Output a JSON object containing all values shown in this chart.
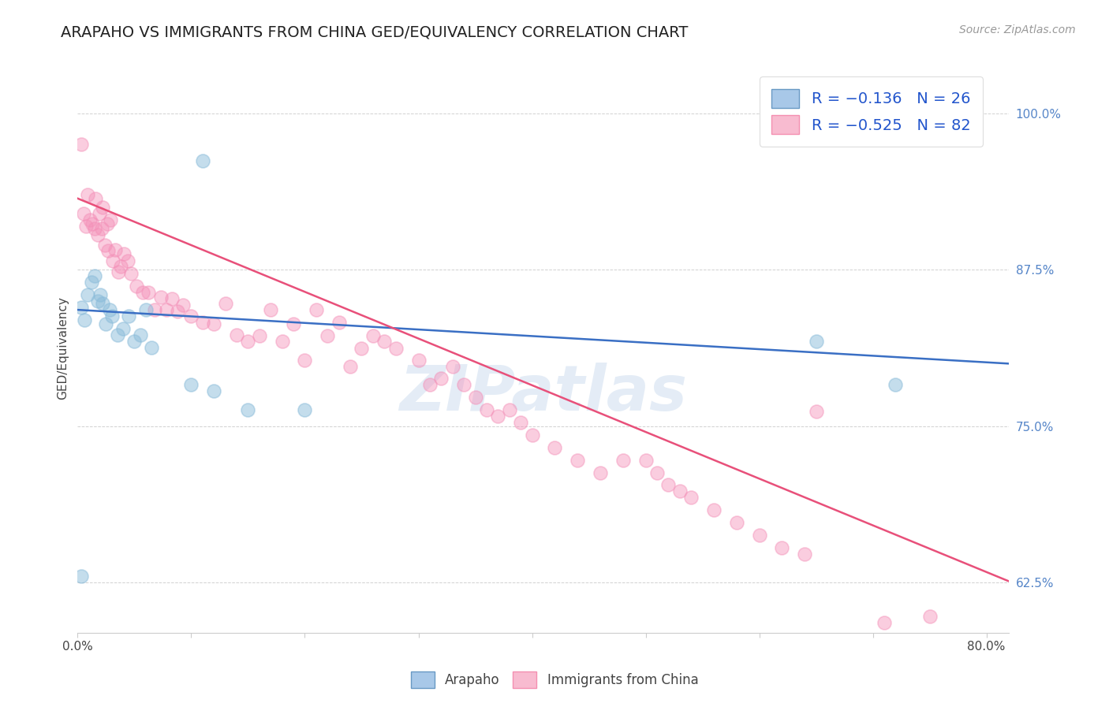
{
  "title": "ARAPAHO VS IMMIGRANTS FROM CHINA GED/EQUIVALENCY CORRELATION CHART",
  "source": "Source: ZipAtlas.com",
  "ylabel": "GED/Equivalency",
  "yticks": [
    0.625,
    0.75,
    0.875,
    1.0
  ],
  "ytick_labels": [
    "62.5%",
    "75.0%",
    "87.5%",
    "100.0%"
  ],
  "xlim": [
    0.0,
    0.82
  ],
  "ylim": [
    0.585,
    1.04
  ],
  "arapaho_color": "#8bbcda",
  "china_color": "#f490b8",
  "arapaho_scatter": [
    [
      0.003,
      0.845
    ],
    [
      0.006,
      0.835
    ],
    [
      0.009,
      0.855
    ],
    [
      0.012,
      0.865
    ],
    [
      0.015,
      0.87
    ],
    [
      0.018,
      0.85
    ],
    [
      0.02,
      0.855
    ],
    [
      0.022,
      0.848
    ],
    [
      0.025,
      0.832
    ],
    [
      0.028,
      0.843
    ],
    [
      0.03,
      0.838
    ],
    [
      0.035,
      0.823
    ],
    [
      0.04,
      0.828
    ],
    [
      0.045,
      0.838
    ],
    [
      0.05,
      0.818
    ],
    [
      0.055,
      0.823
    ],
    [
      0.06,
      0.843
    ],
    [
      0.065,
      0.813
    ],
    [
      0.1,
      0.783
    ],
    [
      0.12,
      0.778
    ],
    [
      0.15,
      0.763
    ],
    [
      0.2,
      0.763
    ],
    [
      0.65,
      0.818
    ],
    [
      0.72,
      0.783
    ],
    [
      0.003,
      0.63
    ],
    [
      0.11,
      0.962
    ]
  ],
  "china_scatter": [
    [
      0.003,
      0.975
    ],
    [
      0.005,
      0.92
    ],
    [
      0.007,
      0.91
    ],
    [
      0.009,
      0.935
    ],
    [
      0.011,
      0.915
    ],
    [
      0.013,
      0.912
    ],
    [
      0.015,
      0.908
    ],
    [
      0.016,
      0.932
    ],
    [
      0.018,
      0.903
    ],
    [
      0.019,
      0.92
    ],
    [
      0.021,
      0.908
    ],
    [
      0.022,
      0.925
    ],
    [
      0.024,
      0.895
    ],
    [
      0.026,
      0.912
    ],
    [
      0.027,
      0.89
    ],
    [
      0.029,
      0.915
    ],
    [
      0.031,
      0.882
    ],
    [
      0.033,
      0.891
    ],
    [
      0.036,
      0.873
    ],
    [
      0.038,
      0.878
    ],
    [
      0.041,
      0.888
    ],
    [
      0.044,
      0.882
    ],
    [
      0.047,
      0.872
    ],
    [
      0.052,
      0.862
    ],
    [
      0.057,
      0.857
    ],
    [
      0.062,
      0.857
    ],
    [
      0.068,
      0.843
    ],
    [
      0.073,
      0.853
    ],
    [
      0.078,
      0.843
    ],
    [
      0.083,
      0.852
    ],
    [
      0.088,
      0.842
    ],
    [
      0.093,
      0.847
    ],
    [
      0.1,
      0.838
    ],
    [
      0.11,
      0.833
    ],
    [
      0.12,
      0.832
    ],
    [
      0.13,
      0.848
    ],
    [
      0.14,
      0.823
    ],
    [
      0.15,
      0.818
    ],
    [
      0.16,
      0.822
    ],
    [
      0.17,
      0.843
    ],
    [
      0.18,
      0.818
    ],
    [
      0.19,
      0.832
    ],
    [
      0.2,
      0.803
    ],
    [
      0.21,
      0.843
    ],
    [
      0.22,
      0.822
    ],
    [
      0.23,
      0.833
    ],
    [
      0.24,
      0.798
    ],
    [
      0.25,
      0.812
    ],
    [
      0.26,
      0.822
    ],
    [
      0.27,
      0.818
    ],
    [
      0.28,
      0.812
    ],
    [
      0.3,
      0.803
    ],
    [
      0.31,
      0.783
    ],
    [
      0.32,
      0.788
    ],
    [
      0.33,
      0.798
    ],
    [
      0.34,
      0.783
    ],
    [
      0.35,
      0.773
    ],
    [
      0.36,
      0.763
    ],
    [
      0.37,
      0.758
    ],
    [
      0.38,
      0.763
    ],
    [
      0.39,
      0.753
    ],
    [
      0.4,
      0.743
    ],
    [
      0.42,
      0.733
    ],
    [
      0.44,
      0.723
    ],
    [
      0.46,
      0.713
    ],
    [
      0.48,
      0.723
    ],
    [
      0.5,
      0.723
    ],
    [
      0.51,
      0.713
    ],
    [
      0.52,
      0.703
    ],
    [
      0.53,
      0.698
    ],
    [
      0.54,
      0.693
    ],
    [
      0.56,
      0.683
    ],
    [
      0.58,
      0.673
    ],
    [
      0.6,
      0.663
    ],
    [
      0.62,
      0.653
    ],
    [
      0.64,
      0.648
    ],
    [
      0.65,
      0.762
    ],
    [
      0.71,
      0.593
    ],
    [
      0.75,
      0.598
    ]
  ],
  "arapaho_trendline": {
    "x": [
      0.0,
      0.82
    ],
    "y": [
      0.843,
      0.8
    ]
  },
  "china_trendline": {
    "x": [
      0.0,
      0.82
    ],
    "y": [
      0.932,
      0.626
    ]
  },
  "watermark": "ZIPatlas",
  "background_color": "#ffffff",
  "grid_color": "#cccccc",
  "title_fontsize": 14,
  "source_fontsize": 10,
  "axis_label_fontsize": 11,
  "tick_fontsize": 11,
  "legend_fontsize": 14
}
